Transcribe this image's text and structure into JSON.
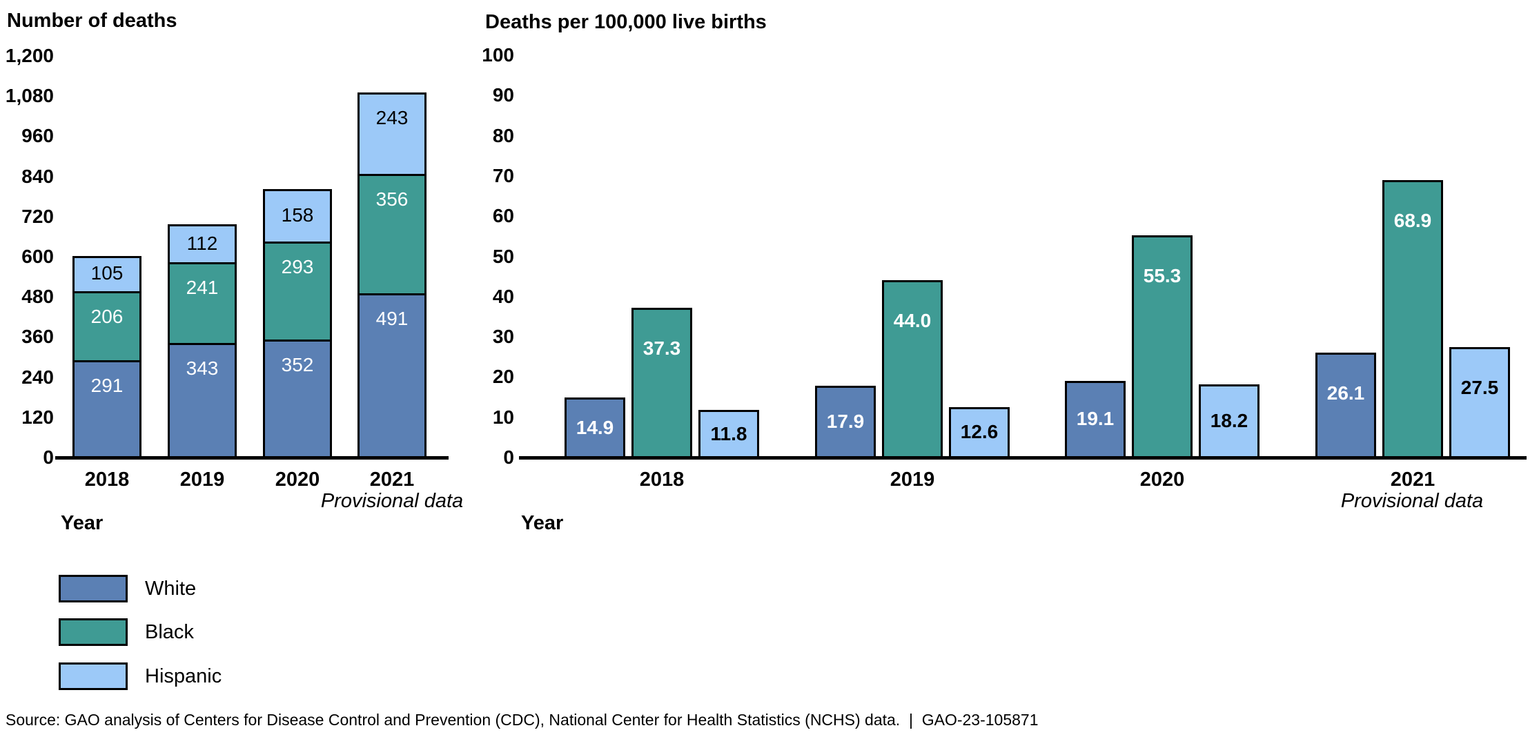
{
  "page": {
    "source_note": "Source: GAO analysis of Centers for Disease Control and Prevention (CDC), National Center for Health Statistics (NCHS) data.  |  GAO-23-105871"
  },
  "colors": {
    "white_series": "#5b80b4",
    "black_series": "#3f9b94",
    "hispanic_series": "#9cc9f8",
    "bar_border": "#000000",
    "axis": "#000000",
    "text": "#000000"
  },
  "legend": {
    "items": [
      {
        "label": "White",
        "color_key": "white_series"
      },
      {
        "label": "Black",
        "color_key": "black_series"
      },
      {
        "label": "Hispanic",
        "color_key": "hispanic_series"
      }
    ]
  },
  "chart_data": [
    {
      "type": "bar",
      "variant": "stacked",
      "title": "Number of deaths",
      "xlabel": "Year",
      "x_annotation": "Provisional data",
      "categories": [
        "2018",
        "2019",
        "2020",
        "2021"
      ],
      "series": [
        {
          "name": "White",
          "color_key": "white_series",
          "label_color": "#ffffff",
          "values": [
            291,
            343,
            352,
            491
          ],
          "labels": [
            "291",
            "343",
            "352",
            "491"
          ]
        },
        {
          "name": "Black",
          "color_key": "black_series",
          "label_color": "#ffffff",
          "values": [
            206,
            241,
            293,
            356
          ],
          "labels": [
            "206",
            "241",
            "293",
            "356"
          ]
        },
        {
          "name": "Hispanic",
          "color_key": "hispanic_series",
          "label_color": "#000000",
          "values": [
            105,
            112,
            158,
            243
          ],
          "labels": [
            "105",
            "112",
            "158",
            "243"
          ]
        }
      ],
      "ylim": [
        0,
        1200
      ],
      "ytick_step": 120,
      "yticks": [
        "0",
        "120",
        "240",
        "360",
        "480",
        "600",
        "720",
        "840",
        "960",
        "1,080",
        "1,200"
      ],
      "grid": false,
      "legend_position": "bottom-left"
    },
    {
      "type": "bar",
      "variant": "grouped",
      "title": "Deaths per 100,000 live births",
      "xlabel": "Year",
      "x_annotation": "Provisional data",
      "categories": [
        "2018",
        "2019",
        "2020",
        "2021"
      ],
      "series": [
        {
          "name": "White",
          "color_key": "white_series",
          "label_color": "#ffffff",
          "values": [
            14.9,
            17.9,
            19.1,
            26.1
          ],
          "labels": [
            "14.9",
            "17.9",
            "19.1",
            "26.1"
          ]
        },
        {
          "name": "Black",
          "color_key": "black_series",
          "label_color": "#ffffff",
          "values": [
            37.3,
            44.0,
            55.3,
            68.9
          ],
          "labels": [
            "37.3",
            "44.0",
            "55.3",
            "68.9"
          ]
        },
        {
          "name": "Hispanic",
          "color_key": "hispanic_series",
          "label_color": "#000000",
          "values": [
            11.8,
            12.6,
            18.2,
            27.5
          ],
          "labels": [
            "11.8",
            "12.6",
            "18.2",
            "27.5"
          ]
        }
      ],
      "ylim": [
        0,
        100
      ],
      "ytick_step": 10,
      "yticks": [
        "0",
        "10",
        "20",
        "30",
        "40",
        "50",
        "60",
        "70",
        "80",
        "90",
        "100"
      ],
      "grid": false,
      "legend_position": "none"
    }
  ]
}
